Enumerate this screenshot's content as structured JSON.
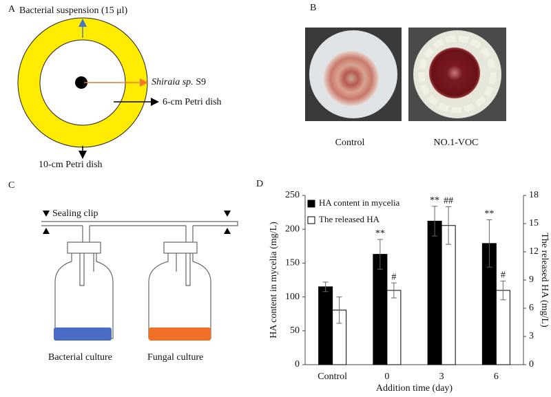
{
  "panels": {
    "a": {
      "label": "A",
      "suspension": "Bacterial suspension (15 μl)",
      "species": "Shiraia sp.",
      "strain": "S9",
      "inner_dish": "6-cm Petri dish",
      "outer_dish": "10-cm Petri dish"
    },
    "b": {
      "label": "B",
      "left_caption": "Control",
      "right_caption": "NO.1-VOC"
    },
    "c": {
      "label": "C",
      "clip": "Sealing clip",
      "left_bottle": "Bacterial culture",
      "right_bottle": "Fungal culture"
    },
    "d": {
      "label": "D"
    }
  },
  "chart_data": {
    "type": "bar",
    "xlabel": "Addition time (day)",
    "ylabel": "HA content in mycelia (mg/L)",
    "y2label": "The released HA (mg/L)",
    "categories": [
      "Control",
      "0",
      "3",
      "6"
    ],
    "series": [
      {
        "name": "HA content in mycelia",
        "color": "#000000",
        "values": [
          115,
          163,
          212,
          179
        ],
        "errors": [
          7,
          22,
          22,
          35
        ],
        "annotations": [
          null,
          "**",
          "**",
          "**"
        ]
      },
      {
        "name": "The released HA",
        "color": "#ffffff",
        "axis": "y2",
        "values": [
          5.8,
          7.9,
          14.8,
          7.9
        ],
        "errors": [
          1.4,
          0.8,
          2.0,
          1.0
        ],
        "annotations": [
          null,
          "#",
          "##",
          "#"
        ]
      }
    ],
    "ylim": [
      0,
      250
    ],
    "yticks": [
      0,
      50,
      100,
      150,
      200,
      250
    ],
    "y2lim": [
      0,
      18
    ],
    "y2ticks": [
      0,
      3,
      6,
      9,
      12,
      15,
      18
    ],
    "legend": "upper left"
  }
}
